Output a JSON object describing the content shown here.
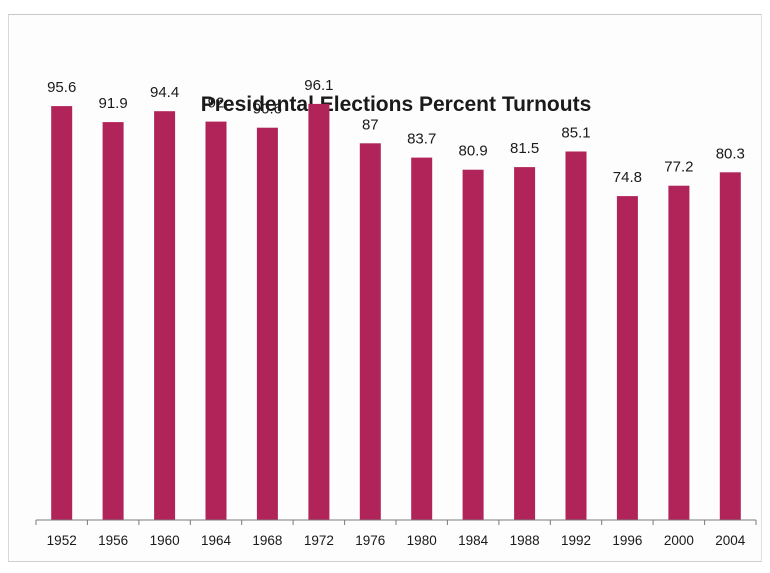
{
  "chart_data": {
    "type": "bar",
    "title": "Presidental Elections Percent Turnouts",
    "xlabel": "",
    "ylabel": "",
    "categories": [
      "1952",
      "1956",
      "1960",
      "1964",
      "1968",
      "1972",
      "1976",
      "1980",
      "1984",
      "1988",
      "1992",
      "1996",
      "2000",
      "2004"
    ],
    "values": [
      95.6,
      91.9,
      94.4,
      92,
      90.6,
      96.1,
      87,
      83.7,
      80.9,
      81.5,
      85.1,
      74.8,
      77.2,
      80.3
    ],
    "value_labels": [
      "95.6",
      "91.9",
      "94.4",
      "92",
      "90.6",
      "96.1",
      "87",
      "83.7",
      "80.9",
      "81.5",
      "85.1",
      "74.8",
      "77.2",
      "80.3"
    ],
    "ylim": [
      0,
      100
    ],
    "grid": false,
    "legend": "none",
    "bar_color": "#b0245a"
  }
}
